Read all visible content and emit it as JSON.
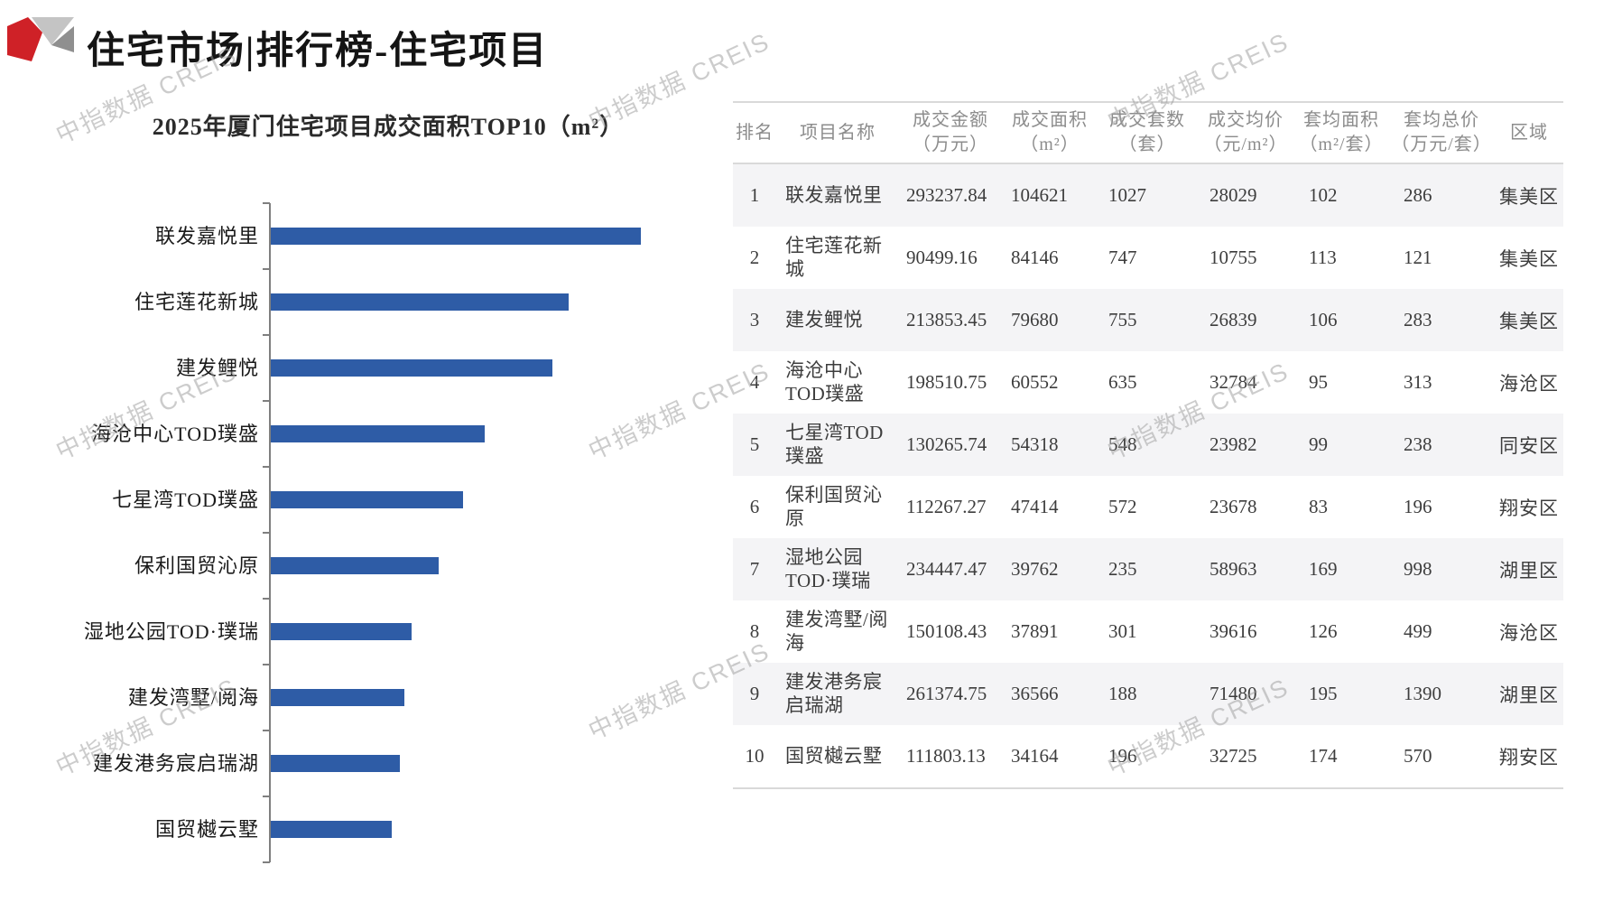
{
  "page": {
    "title": "住宅市场|排行榜-住宅项目",
    "watermark": "中指数据 CREIS"
  },
  "colors": {
    "bar": "#2e5ca6",
    "logo_red": "#cf2127",
    "logo_gray_light": "#c4c4c4",
    "logo_gray_dark": "#8f8f8f",
    "stripe": "#f4f4f6",
    "border": "#d9d9d9",
    "header_text": "#8c8c8c",
    "body_text": "#3d3d3d",
    "axis": "#7f7f7f",
    "watermark_gray": "#9b9b9b"
  },
  "chart_data": {
    "type": "bar",
    "orientation": "horizontal",
    "title": "2025年厦门住宅项目成交面积TOP10（m²）",
    "categories": [
      "联发嘉悦里",
      "住宅莲花新城",
      "建发鲤悦",
      "海沧中心TOD璞盛",
      "七星湾TOD璞盛",
      "保利国贸沁原",
      "湿地公园TOD·璞瑞",
      "建发湾墅/阅海",
      "建发港务宸启瑞湖",
      "国贸樾云墅"
    ],
    "values": [
      104621,
      84146,
      79680,
      60552,
      54318,
      47414,
      39762,
      37891,
      36566,
      34164
    ],
    "xlabel": "",
    "ylabel": "",
    "xlim": [
      0,
      104621
    ],
    "grid": false,
    "legend": false,
    "bar_color": "#2e5ca6"
  },
  "table": {
    "headers": [
      [
        "排名",
        ""
      ],
      [
        "项目名称",
        ""
      ],
      [
        "成交金额",
        "（万元）"
      ],
      [
        "成交面积",
        "（m²）"
      ],
      [
        "成交套数",
        "（套）"
      ],
      [
        "成交均价",
        "（元/m²）"
      ],
      [
        "套均面积",
        "（m²/套）"
      ],
      [
        "套均总价",
        "（万元/套）"
      ],
      [
        "区域",
        ""
      ]
    ],
    "rows": [
      {
        "rank": "1",
        "name": "联发嘉悦里",
        "amount": "293237.84",
        "area": "104621",
        "units": "1027",
        "avg_price": "28029",
        "avg_area": "102",
        "avg_total": "286",
        "region": "集美区"
      },
      {
        "rank": "2",
        "name": "住宅莲花新城",
        "amount": "90499.16",
        "area": "84146",
        "units": "747",
        "avg_price": "10755",
        "avg_area": "113",
        "avg_total": "121",
        "region": "集美区"
      },
      {
        "rank": "3",
        "name": "建发鲤悦",
        "amount": "213853.45",
        "area": "79680",
        "units": "755",
        "avg_price": "26839",
        "avg_area": "106",
        "avg_total": "283",
        "region": "集美区"
      },
      {
        "rank": "4",
        "name": "海沧中心TOD璞盛",
        "amount": "198510.75",
        "area": "60552",
        "units": "635",
        "avg_price": "32784",
        "avg_area": "95",
        "avg_total": "313",
        "region": "海沧区"
      },
      {
        "rank": "5",
        "name": "七星湾TOD璞盛",
        "amount": "130265.74",
        "area": "54318",
        "units": "548",
        "avg_price": "23982",
        "avg_area": "99",
        "avg_total": "238",
        "region": "同安区"
      },
      {
        "rank": "6",
        "name": "保利国贸沁原",
        "amount": "112267.27",
        "area": "47414",
        "units": "572",
        "avg_price": "23678",
        "avg_area": "83",
        "avg_total": "196",
        "region": "翔安区"
      },
      {
        "rank": "7",
        "name": "湿地公园TOD·璞瑞",
        "amount": "234447.47",
        "area": "39762",
        "units": "235",
        "avg_price": "58963",
        "avg_area": "169",
        "avg_total": "998",
        "region": "湖里区"
      },
      {
        "rank": "8",
        "name": "建发湾墅/阅海",
        "amount": "150108.43",
        "area": "37891",
        "units": "301",
        "avg_price": "39616",
        "avg_area": "126",
        "avg_total": "499",
        "region": "海沧区"
      },
      {
        "rank": "9",
        "name": "建发港务宸启瑞湖",
        "amount": "261374.75",
        "area": "36566",
        "units": "188",
        "avg_price": "71480",
        "avg_area": "195",
        "avg_total": "1390",
        "region": "湖里区"
      },
      {
        "rank": "10",
        "name": "国贸樾云墅",
        "amount": "111803.13",
        "area": "34164",
        "units": "196",
        "avg_price": "32725",
        "avg_area": "174",
        "avg_total": "570",
        "region": "翔安区"
      }
    ]
  }
}
